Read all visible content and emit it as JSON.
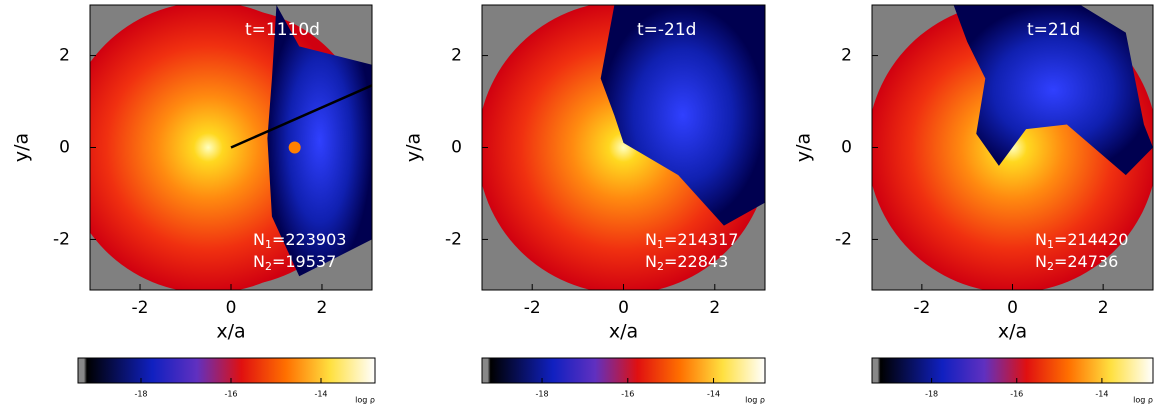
{
  "chart_data": [
    {
      "type": "heatmap",
      "annotation": "t=1110d",
      "n1": [
        "N",
        "1",
        "=223903"
      ],
      "n2": [
        "N",
        "2",
        "=19537"
      ],
      "xlabel": "x/a",
      "ylabel": "y/a",
      "xlim": [
        -3.1,
        3.1
      ],
      "ylim": [
        -3.1,
        3.1
      ],
      "xticks": [
        -2,
        0,
        2
      ],
      "yticks": [
        -2,
        0,
        2
      ],
      "colorbar": {
        "lim": [
          -19.4,
          -12.8
        ],
        "ticks": [
          -18,
          -16,
          -14
        ],
        "label": "log ρ"
      }
    },
    {
      "type": "heatmap",
      "annotation": "t=-21d",
      "n1": [
        "N",
        "1",
        "=214317"
      ],
      "n2": [
        "N",
        "2",
        "=22843"
      ],
      "xlabel": "x/a",
      "ylabel": "y/a",
      "xlim": [
        -3.1,
        3.1
      ],
      "ylim": [
        -3.1,
        3.1
      ],
      "xticks": [
        -2,
        0,
        2
      ],
      "yticks": [
        -2,
        0,
        2
      ],
      "colorbar": {
        "lim": [
          -19.4,
          -12.8
        ],
        "ticks": [
          -18,
          -16,
          -14
        ],
        "label": "log ρ"
      }
    },
    {
      "type": "heatmap",
      "annotation": "t=21d",
      "n1": [
        "N",
        "1",
        "=214420"
      ],
      "n2": [
        "N",
        "2",
        "=24736"
      ],
      "xlabel": "x/a",
      "ylabel": "y/a",
      "xlim": [
        -3.1,
        3.1
      ],
      "ylim": [
        -3.1,
        3.1
      ],
      "xticks": [
        -2,
        0,
        2
      ],
      "yticks": [
        -2,
        0,
        2
      ],
      "colorbar": {
        "lim": [
          -19.4,
          -12.8
        ],
        "ticks": [
          -18,
          -16,
          -14
        ],
        "label": "log ρ"
      }
    }
  ]
}
